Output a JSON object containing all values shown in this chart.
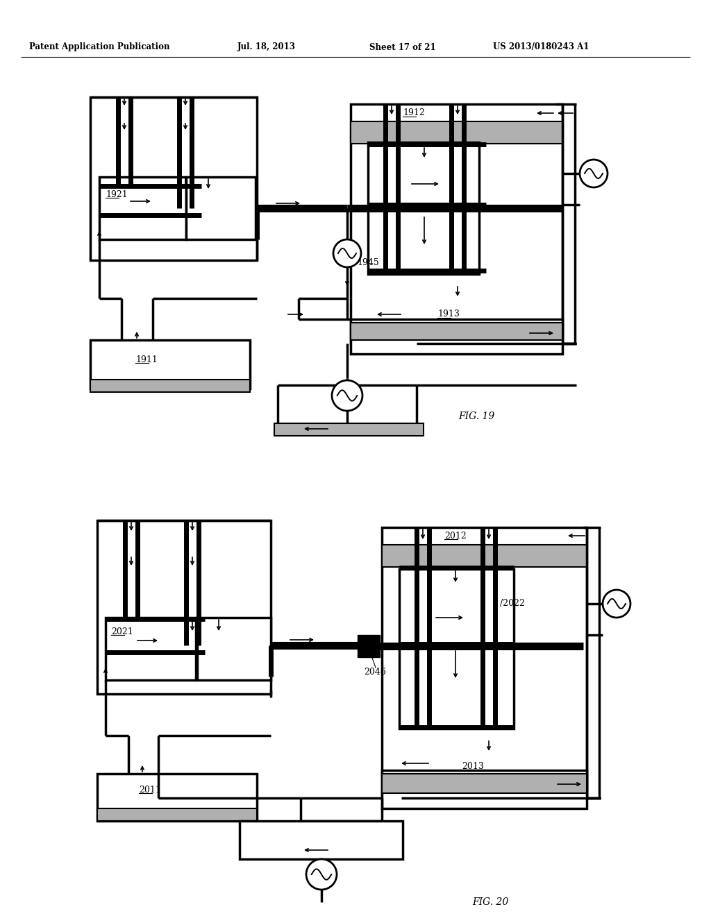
{
  "page_header": "Patent Application Publication",
  "page_date": "Jul. 18, 2013",
  "page_sheet": "Sheet 17 of 21",
  "page_patent": "US 2013/0180243 A1",
  "fig19_label": "FIG. 19",
  "fig20_label": "FIG. 20",
  "label_1911": "1911",
  "label_1912": "1912",
  "label_1913": "1913",
  "label_1921": "1921",
  "label_1945": "1945",
  "label_2011": "2011",
  "label_2012": "2012",
  "label_2013": "2013",
  "label_2021": "2021",
  "label_2022": "2022",
  "label_2046": "2046",
  "bg_color": "#ffffff",
  "line_color": "#000000",
  "gray_color": "#b0b0b0"
}
